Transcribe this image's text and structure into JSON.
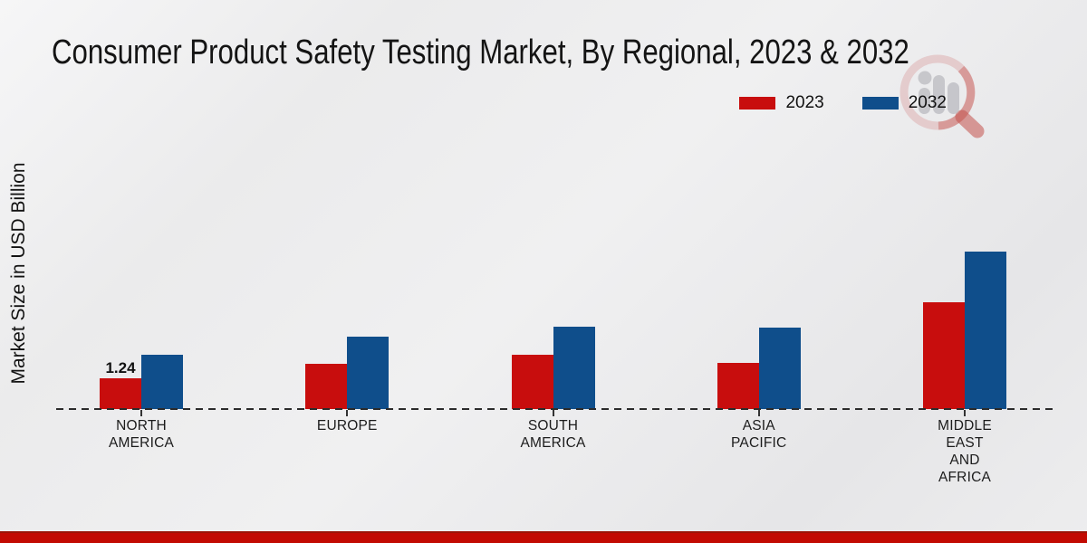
{
  "title": "Consumer Product Safety Testing Market, By Regional, 2023 & 2032",
  "legend": {
    "items": [
      {
        "label": "2023",
        "color": "#c80d0d"
      },
      {
        "label": "2032",
        "color": "#0f4e8b"
      }
    ]
  },
  "chart_data": {
    "type": "bar",
    "title": "Consumer Product Safety Testing Market, By Regional, 2023 & 2032",
    "xlabel": "",
    "ylabel": "Market Size in USD Billion",
    "categories": [
      "NORTH AMERICA",
      "EUROPE",
      "SOUTH AMERICA",
      "ASIA PACIFIC",
      "MIDDLE EAST AND AFRICA"
    ],
    "category_label_lines": [
      [
        "NORTH",
        "AMERICA"
      ],
      [
        "EUROPE"
      ],
      [
        "SOUTH",
        "AMERICA"
      ],
      [
        "ASIA",
        "PACIFIC"
      ],
      [
        "MIDDLE",
        "EAST",
        "AND",
        "AFRICA"
      ]
    ],
    "series": [
      {
        "name": "2023",
        "color": "#c80d0d",
        "values": [
          1.24,
          1.8,
          2.16,
          1.83,
          4.24
        ]
      },
      {
        "name": "2032",
        "color": "#0f4e8b",
        "values": [
          2.17,
          2.88,
          3.27,
          3.23,
          6.25
        ]
      }
    ],
    "data_labels": [
      {
        "series": "2023",
        "category": "NORTH AMERICA",
        "text": "1.24"
      }
    ],
    "ylim": [
      0,
      8
    ],
    "grid": false,
    "legend_position": "top-right",
    "baseline_style": "dashed"
  },
  "footer": {
    "bar_color": "#c20a02"
  },
  "watermark": {
    "grey": "#c3c3c8",
    "ring_pink": "#dba4a4",
    "red": "#c4524d"
  }
}
